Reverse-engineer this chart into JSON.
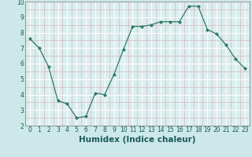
{
  "x": [
    0,
    1,
    2,
    3,
    4,
    5,
    6,
    7,
    8,
    9,
    10,
    11,
    12,
    13,
    14,
    15,
    16,
    17,
    18,
    19,
    20,
    21,
    22,
    23
  ],
  "y": [
    7.6,
    7.0,
    5.8,
    3.6,
    3.4,
    2.5,
    2.6,
    4.1,
    4.0,
    5.3,
    6.9,
    8.4,
    8.4,
    8.5,
    8.7,
    8.7,
    8.7,
    9.7,
    9.7,
    8.2,
    7.9,
    7.2,
    6.3,
    5.7
  ],
  "line_color": "#2d7a68",
  "marker": "D",
  "marker_size": 2.2,
  "bg_color": "#cce8e8",
  "plot_bg_color": "#daeef0",
  "grid_color_major": "#ffffff",
  "grid_color_minor": "#d4b8b8",
  "xlabel": "Humidex (Indice chaleur)",
  "ylim": [
    2,
    10
  ],
  "xlim": [
    -0.5,
    23.5
  ],
  "yticks": [
    2,
    3,
    4,
    5,
    6,
    7,
    8,
    9,
    10
  ],
  "xticks": [
    0,
    1,
    2,
    3,
    4,
    5,
    6,
    7,
    8,
    9,
    10,
    11,
    12,
    13,
    14,
    15,
    16,
    17,
    18,
    19,
    20,
    21,
    22,
    23
  ],
  "tick_fontsize": 5.5,
  "xlabel_fontsize": 7.5,
  "tick_color": "#1a5a5a",
  "spine_color": "#888888",
  "linewidth": 0.9
}
